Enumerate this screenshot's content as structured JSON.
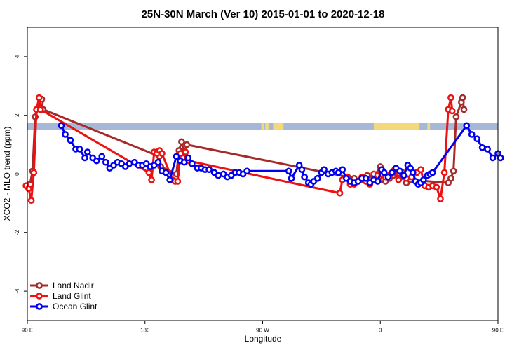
{
  "chart_data": {
    "type": "line",
    "title": "25N-30N March (Ver 10)   2015-01-01 to 2020-12-18",
    "xlabel": "Longitude",
    "ylabel": "XCO2 - MLO trend (ppm)",
    "xlim": [
      90,
      450
    ],
    "ylim": [
      -5,
      5
    ],
    "x_ticks": [
      {
        "value": 90,
        "label": "90 E"
      },
      {
        "value": 180,
        "label": "180"
      },
      {
        "value": 270,
        "label": "90 W"
      },
      {
        "value": 360,
        "label": "0"
      },
      {
        "value": 450,
        "label": "90 E"
      },
      {
        "value": 540,
        "label": "180"
      }
    ],
    "y_ticks": [
      {
        "value": -4,
        "label": "-4"
      },
      {
        "value": -2,
        "label": "-2"
      },
      {
        "value": 0,
        "label": "0"
      },
      {
        "value": 2,
        "label": "2"
      },
      {
        "value": 4,
        "label": "4"
      }
    ],
    "legend_position": "bottom-left",
    "land_ocean_strip": {
      "y_range": [
        1.5,
        1.75
      ],
      "ocean_color": "#a5b8d8",
      "land_color": "#f5d87a",
      "land_segments": [
        [
          269,
          271
        ],
        [
          272,
          275
        ],
        [
          278,
          282
        ],
        [
          280,
          286
        ],
        [
          355,
          360
        ],
        [
          360,
          390
        ],
        [
          396,
          398
        ]
      ]
    },
    "series": [
      {
        "name": "Land Nadir",
        "color": "#a52a2a",
        "points": [
          [
            92,
            -0.35
          ],
          [
            94,
            0.1
          ],
          [
            96,
            1.95
          ],
          [
            100,
            2.45
          ],
          [
            101,
            2.55
          ],
          [
            102,
            2.2
          ],
          [
            191,
            0.6
          ],
          [
            192,
            0.25
          ],
          [
            204,
            0
          ],
          [
            206,
            0.8
          ],
          [
            208,
            1.1
          ],
          [
            210,
            0.75
          ],
          [
            212,
            1
          ],
          [
            335,
            -0.1
          ],
          [
            340,
            -0.15
          ],
          [
            345,
            -0.2
          ],
          [
            350,
            -0.05
          ],
          [
            355,
            -0.1
          ],
          [
            360,
            0.25
          ],
          [
            362,
            -0.2
          ],
          [
            364,
            -0.25
          ],
          [
            367,
            -0.15
          ],
          [
            370,
            -0.05
          ],
          [
            373,
            0
          ],
          [
            375,
            0.1
          ],
          [
            378,
            -0.1
          ],
          [
            380,
            -0.3
          ],
          [
            383,
            -0.2
          ],
          [
            412,
            -0.3
          ],
          [
            414,
            -0.15
          ],
          [
            416,
            0.1
          ],
          [
            418,
            1.95
          ],
          [
            422,
            2.45
          ],
          [
            423,
            2.6
          ],
          [
            424,
            2.2
          ]
        ]
      },
      {
        "name": "Land Glint",
        "color": "#ee1111",
        "points": [
          [
            89,
            -0.4
          ],
          [
            91,
            -0.5
          ],
          [
            93,
            -0.9
          ],
          [
            95,
            0.05
          ],
          [
            97,
            2.2
          ],
          [
            99,
            2.6
          ],
          [
            100,
            2.2
          ],
          [
            183,
            0.05
          ],
          [
            185,
            -0.2
          ],
          [
            187,
            0.75
          ],
          [
            189,
            0.7
          ],
          [
            191,
            0.8
          ],
          [
            193,
            0.7
          ],
          [
            201,
            -0.2
          ],
          [
            203,
            -0.25
          ],
          [
            205,
            -0.25
          ],
          [
            207,
            0.7
          ],
          [
            209,
            0.55
          ],
          [
            211,
            0.75
          ],
          [
            213,
            0.45
          ],
          [
            329,
            -0.65
          ],
          [
            331,
            -0.2
          ],
          [
            334,
            -0.1
          ],
          [
            337,
            -0.35
          ],
          [
            340,
            -0.35
          ],
          [
            343,
            -0.25
          ],
          [
            346,
            -0.1
          ],
          [
            349,
            -0.25
          ],
          [
            352,
            -0.35
          ],
          [
            355,
            0
          ],
          [
            358,
            -0.05
          ],
          [
            361,
            0
          ],
          [
            364,
            -0.1
          ],
          [
            368,
            0
          ],
          [
            371,
            0.15
          ],
          [
            374,
            -0.2
          ],
          [
            377,
            0.05
          ],
          [
            380,
            -0.15
          ],
          [
            384,
            -0.1
          ],
          [
            388,
            0.05
          ],
          [
            391,
            0.15
          ],
          [
            394,
            -0.4
          ],
          [
            397,
            -0.45
          ],
          [
            400,
            -0.4
          ],
          [
            403,
            -0.45
          ],
          [
            406,
            -0.85
          ],
          [
            409,
            0.05
          ],
          [
            412,
            2.2
          ],
          [
            414,
            2.6
          ],
          [
            415,
            2.15
          ]
        ]
      },
      {
        "name": "Ocean Glint",
        "color": "#0000ee",
        "points": [
          [
            116,
            1.65
          ],
          [
            119,
            1.35
          ],
          [
            123,
            1.15
          ],
          [
            127,
            0.85
          ],
          [
            130,
            0.85
          ],
          [
            134,
            0.55
          ],
          [
            136,
            0.75
          ],
          [
            140,
            0.55
          ],
          [
            143,
            0.45
          ],
          [
            147,
            0.6
          ],
          [
            150,
            0.4
          ],
          [
            153,
            0.2
          ],
          [
            156,
            0.3
          ],
          [
            159,
            0.4
          ],
          [
            162,
            0.35
          ],
          [
            165,
            0.25
          ],
          [
            168,
            0.35
          ],
          [
            172,
            0.4
          ],
          [
            175,
            0.3
          ],
          [
            178,
            0.3
          ],
          [
            181,
            0.35
          ],
          [
            184,
            0.25
          ],
          [
            187,
            0.3
          ],
          [
            190,
            0.4
          ],
          [
            193,
            0.1
          ],
          [
            196,
            0.05
          ],
          [
            199,
            -0.2
          ],
          [
            204,
            0.6
          ],
          [
            207,
            0.45
          ],
          [
            210,
            0.4
          ],
          [
            213,
            0.55
          ],
          [
            216,
            0.35
          ],
          [
            220,
            0.2
          ],
          [
            223,
            0.2
          ],
          [
            226,
            0.15
          ],
          [
            229,
            0.15
          ],
          [
            233,
            0.05
          ],
          [
            236,
            -0.05
          ],
          [
            240,
            0
          ],
          [
            243,
            -0.1
          ],
          [
            246,
            -0.05
          ],
          [
            249,
            0.05
          ],
          [
            252,
            0.05
          ],
          [
            255,
            0
          ],
          [
            258,
            0.1
          ],
          [
            290,
            0.1
          ],
          [
            292,
            -0.15
          ],
          [
            298,
            0.3
          ],
          [
            300,
            0.15
          ],
          [
            302,
            -0.1
          ],
          [
            305,
            -0.3
          ],
          [
            307,
            -0.35
          ],
          [
            309,
            -0.25
          ],
          [
            312,
            -0.15
          ],
          [
            315,
            0.05
          ],
          [
            317,
            0.15
          ],
          [
            320,
            0
          ],
          [
            323,
            0.05
          ],
          [
            326,
            0.1
          ],
          [
            328,
            0.05
          ],
          [
            331,
            0.15
          ],
          [
            334,
            -0.15
          ],
          [
            337,
            -0.25
          ],
          [
            340,
            -0.3
          ],
          [
            343,
            -0.25
          ],
          [
            346,
            -0.15
          ],
          [
            349,
            -0.15
          ],
          [
            352,
            -0.3
          ],
          [
            355,
            -0.2
          ],
          [
            358,
            -0.25
          ],
          [
            361,
            0.15
          ],
          [
            363,
            0.05
          ],
          [
            366,
            -0.1
          ],
          [
            369,
            0.05
          ],
          [
            372,
            0.2
          ],
          [
            375,
            0.1
          ],
          [
            378,
            -0.05
          ],
          [
            381,
            0.3
          ],
          [
            383,
            0.2
          ],
          [
            385,
            0.05
          ],
          [
            387,
            -0.25
          ],
          [
            389,
            -0.35
          ],
          [
            391,
            -0.3
          ],
          [
            393,
            -0.2
          ],
          [
            396,
            -0.05
          ],
          [
            398,
            0
          ],
          [
            400,
            0.05
          ],
          [
            426,
            1.65
          ],
          [
            430,
            1.35
          ],
          [
            434,
            1.2
          ],
          [
            438,
            0.9
          ],
          [
            442,
            0.85
          ],
          [
            446,
            0.55
          ],
          [
            450,
            0.7
          ],
          [
            452,
            0.55
          ]
        ]
      }
    ]
  }
}
